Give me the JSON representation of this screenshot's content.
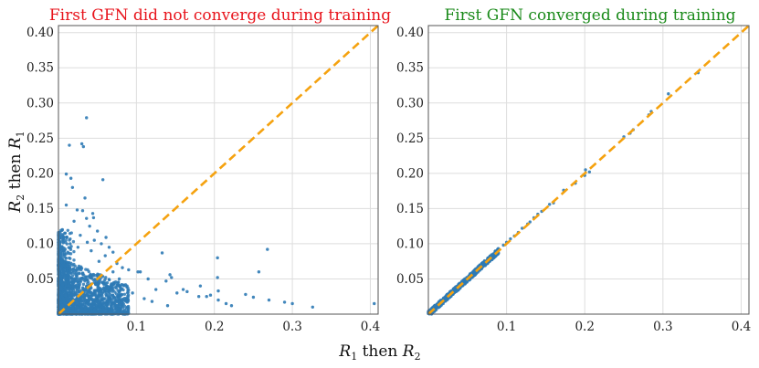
{
  "chart_data": [
    {
      "type": "scatter",
      "title": "First GFN did not converge during training",
      "title_color": "#e8141c",
      "xlabel": "R_1 then R_2",
      "ylabel": "R_2 then R_1",
      "xlim": [
        0.0,
        0.41
      ],
      "ylim": [
        0.0,
        0.41
      ],
      "xticks": [
        0.1,
        0.2,
        0.3,
        0.4
      ],
      "xtick_labels": [
        "0.1",
        "0.2",
        "0.3",
        "0.4"
      ],
      "yticks": [
        0.05,
        0.1,
        0.15,
        0.2,
        0.25,
        0.3,
        0.35,
        0.4
      ],
      "ytick_labels": [
        "0.05",
        "0.10",
        "0.15",
        "0.20",
        "0.25",
        "0.30",
        "0.35",
        "0.40"
      ],
      "grid": true,
      "point_color": "#2e7ab5",
      "reference_line": {
        "style": "dashed",
        "color": "#f5a20f",
        "from": [
          0,
          0
        ],
        "to": [
          0.41,
          0.41
        ]
      },
      "points": [
        [
          0.036,
          0.279
        ],
        [
          0.03,
          0.242
        ],
        [
          0.032,
          0.238
        ],
        [
          0.014,
          0.24
        ],
        [
          0.01,
          0.199
        ],
        [
          0.016,
          0.193
        ],
        [
          0.057,
          0.191
        ],
        [
          0.018,
          0.18
        ],
        [
          0.034,
          0.165
        ],
        [
          0.024,
          0.148
        ],
        [
          0.031,
          0.147
        ],
        [
          0.044,
          0.143
        ],
        [
          0.045,
          0.137
        ],
        [
          0.036,
          0.136
        ],
        [
          0.02,
          0.132
        ],
        [
          0.01,
          0.155
        ],
        [
          0.005,
          0.12
        ],
        [
          0.008,
          0.115
        ],
        [
          0.04,
          0.125
        ],
        [
          0.05,
          0.118
        ],
        [
          0.028,
          0.112
        ],
        [
          0.061,
          0.109
        ],
        [
          0.046,
          0.105
        ],
        [
          0.037,
          0.102
        ],
        [
          0.055,
          0.1
        ],
        [
          0.065,
          0.095
        ],
        [
          0.07,
          0.088
        ],
        [
          0.07,
          0.06
        ],
        [
          0.068,
          0.043
        ],
        [
          0.075,
          0.072
        ],
        [
          0.082,
          0.066
        ],
        [
          0.09,
          0.063
        ],
        [
          0.102,
          0.06
        ],
        [
          0.105,
          0.06
        ],
        [
          0.115,
          0.05
        ],
        [
          0.125,
          0.035
        ],
        [
          0.133,
          0.087
        ],
        [
          0.138,
          0.047
        ],
        [
          0.143,
          0.056
        ],
        [
          0.145,
          0.052
        ],
        [
          0.152,
          0.03
        ],
        [
          0.16,
          0.035
        ],
        [
          0.165,
          0.032
        ],
        [
          0.18,
          0.025
        ],
        [
          0.182,
          0.04
        ],
        [
          0.19,
          0.025
        ],
        [
          0.195,
          0.027
        ],
        [
          0.204,
          0.08
        ],
        [
          0.204,
          0.052
        ],
        [
          0.205,
          0.033
        ],
        [
          0.205,
          0.02
        ],
        [
          0.215,
          0.015
        ],
        [
          0.222,
          0.012
        ],
        [
          0.24,
          0.028
        ],
        [
          0.25,
          0.024
        ],
        [
          0.257,
          0.06
        ],
        [
          0.268,
          0.092
        ],
        [
          0.27,
          0.02
        ],
        [
          0.29,
          0.017
        ],
        [
          0.3,
          0.015
        ],
        [
          0.326,
          0.01
        ],
        [
          0.405,
          0.015
        ],
        [
          0.14,
          0.012
        ],
        [
          0.12,
          0.018
        ],
        [
          0.11,
          0.022
        ],
        [
          0.095,
          0.03
        ],
        [
          0.088,
          0.04
        ],
        [
          0.078,
          0.05
        ],
        [
          0.06,
          0.083
        ],
        [
          0.052,
          0.075
        ],
        [
          0.042,
          0.09
        ],
        [
          0.025,
          0.095
        ],
        [
          0.015,
          0.1
        ],
        [
          0.012,
          0.088
        ]
      ],
      "dense_cluster": {
        "x_range": [
          0.0,
          0.09
        ],
        "y_range": [
          0.0,
          0.08
        ]
      }
    },
    {
      "type": "scatter",
      "title": "First GFN converged during training",
      "title_color": "#1a8a1a",
      "xlabel": "R_1 then R_2",
      "xlim": [
        0.0,
        0.41
      ],
      "ylim": [
        0.0,
        0.41
      ],
      "xticks": [
        0.1,
        0.2,
        0.3,
        0.4
      ],
      "xtick_labels": [
        "0.1",
        "0.2",
        "0.3",
        "0.4"
      ],
      "yticks": [
        0.05,
        0.1,
        0.15,
        0.2,
        0.25,
        0.3,
        0.35,
        0.4
      ],
      "ytick_labels": [
        "0.05",
        "0.10",
        "0.15",
        "0.20",
        "0.25",
        "0.30",
        "0.35",
        "0.40"
      ],
      "grid": true,
      "point_color": "#2e7ab5",
      "reference_line": {
        "style": "dashed",
        "color": "#f5a20f",
        "from": [
          0,
          0
        ],
        "to": [
          0.41,
          0.41
        ]
      },
      "points": [
        [
          0.345,
          0.343
        ],
        [
          0.307,
          0.313
        ],
        [
          0.282,
          0.283
        ],
        [
          0.285,
          0.288
        ],
        [
          0.262,
          0.262
        ],
        [
          0.258,
          0.257
        ],
        [
          0.25,
          0.252
        ],
        [
          0.206,
          0.202
        ],
        [
          0.2,
          0.197
        ],
        [
          0.201,
          0.205
        ],
        [
          0.188,
          0.186
        ],
        [
          0.173,
          0.176
        ],
        [
          0.16,
          0.158
        ],
        [
          0.155,
          0.156
        ],
        [
          0.145,
          0.146
        ],
        [
          0.14,
          0.142
        ],
        [
          0.135,
          0.137
        ],
        [
          0.13,
          0.131
        ],
        [
          0.127,
          0.128
        ],
        [
          0.12,
          0.122
        ],
        [
          0.115,
          0.116
        ],
        [
          0.11,
          0.111
        ],
        [
          0.105,
          0.107
        ],
        [
          0.1,
          0.102
        ],
        [
          0.096,
          0.098
        ]
      ],
      "dense_band": {
        "x_range": [
          0.0,
          0.09
        ],
        "spread": 0.004
      }
    }
  ]
}
